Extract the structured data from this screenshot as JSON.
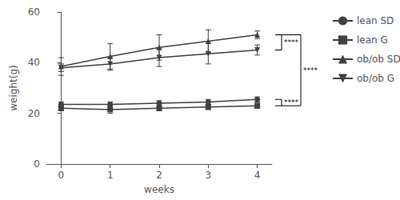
{
  "chart_data": {
    "type": "line",
    "xlabel": "weeks",
    "ylabel": "weight(g)",
    "x": [
      0,
      1,
      2,
      3,
      4
    ],
    "series": [
      {
        "name": "lean SD",
        "color": "#404040",
        "marker": "circle",
        "values": [
          23.5,
          23.5,
          24.0,
          24.5,
          25.5
        ],
        "errors": [
          1.0,
          1.0,
          1.0,
          1.0,
          1.0
        ]
      },
      {
        "name": "lean G",
        "color": "#404040",
        "marker": "square",
        "values": [
          22.0,
          21.5,
          22.0,
          22.5,
          23.0
        ],
        "errors": [
          1.0,
          1.5,
          1.0,
          1.0,
          1.0
        ]
      },
      {
        "name": "ob/ob SD",
        "color": "#404040",
        "marker": "triangle-up",
        "values": [
          38.5,
          42.5,
          46.0,
          48.5,
          51.0
        ],
        "errors": [
          3.5,
          5.0,
          5.0,
          4.5,
          1.5
        ]
      },
      {
        "name": "ob/ob G",
        "color": "#404040",
        "marker": "triangle-down",
        "values": [
          38.0,
          39.5,
          42.0,
          43.5,
          45.0
        ],
        "errors": [
          1.5,
          2.5,
          3.5,
          4.0,
          2.0
        ]
      }
    ],
    "xlim": [
      -0.3,
      4.3
    ],
    "xticks": [
      0,
      1,
      2,
      3,
      4
    ],
    "ylim": [
      0,
      60
    ],
    "yticks": [
      0,
      20,
      40,
      60
    ],
    "grid": false,
    "legend": "right",
    "annotations": [
      {
        "text": "****",
        "y": [
          51.0,
          45.0
        ]
      },
      {
        "text": "****",
        "y": [
          51.0,
          23.0
        ]
      },
      {
        "text": "****",
        "y": [
          25.5,
          23.0
        ]
      }
    ]
  }
}
